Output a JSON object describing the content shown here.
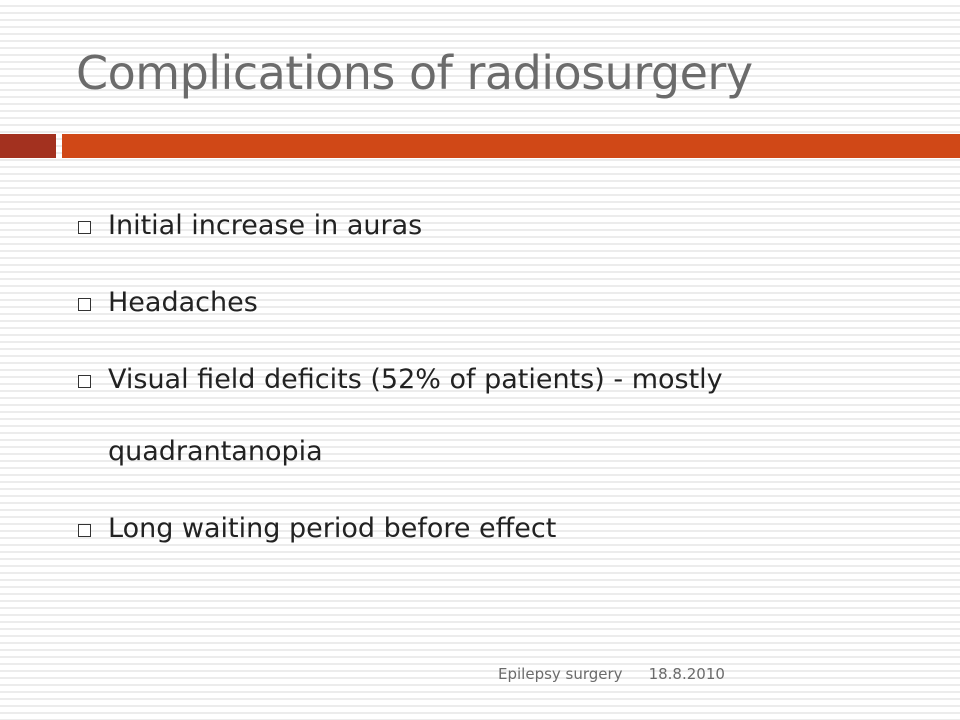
{
  "title": "Complications of radiosurgery",
  "bullets": [
    "Initial increase in auras",
    "Headaches",
    "Visual field deficits (52% of patients) - mostly quadrantanopia",
    "Long waiting period before effect"
  ],
  "footer": {
    "text": "Epilepsy surgery",
    "date": "18.8.2010"
  }
}
